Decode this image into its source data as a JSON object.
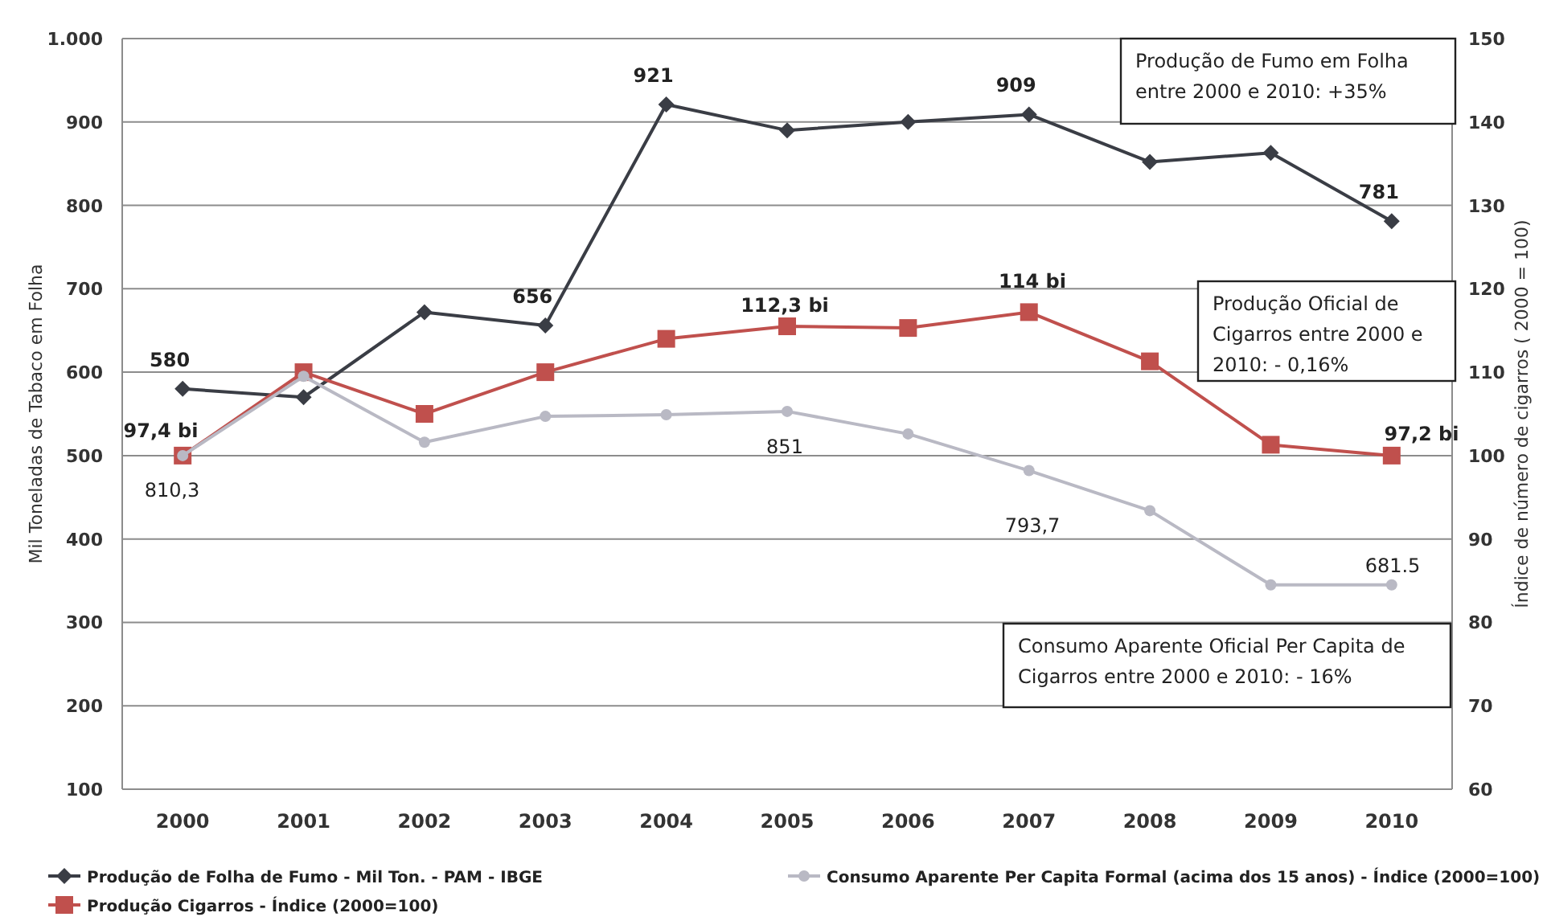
{
  "chart_data": {
    "type": "line",
    "ylabel": "Mil Toneladas de Tabaco em Folha",
    "y2label": "Índice de número de cigarros ( 2000 = 100)",
    "categories": [
      "2000",
      "2001",
      "2002",
      "2003",
      "2004",
      "2005",
      "2006",
      "2007",
      "2008",
      "2009",
      "2010"
    ],
    "ylim": [
      100,
      1000
    ],
    "yticks": [
      100,
      200,
      300,
      400,
      500,
      600,
      700,
      800,
      900,
      {
        "value": 1000,
        "label": "1.000"
      }
    ],
    "y2lim": [
      60,
      150
    ],
    "y2ticks": [
      60,
      70,
      80,
      90,
      100,
      110,
      120,
      130,
      140,
      150
    ],
    "grid": "y",
    "legend": "bottom",
    "series": [
      {
        "name": "Produção de Folha de Fumo - Mil Ton. - PAM - IBGE",
        "color": "#3a3d45",
        "marker": "diamond",
        "values": [
          580,
          570,
          672,
          656,
          921,
          890,
          900,
          909,
          852,
          863,
          781
        ],
        "value_labels": [
          "580",
          null,
          null,
          "656",
          "921",
          null,
          null,
          "909",
          null,
          null,
          "781"
        ]
      },
      {
        "name": "Produção Cigarros  - Índice (2000=100)",
        "color": "#c0504d",
        "marker": "square",
        "axis": "y2",
        "values": [
          100,
          110,
          105,
          110,
          114,
          115.5,
          115.3,
          117.2,
          111.3,
          101.3,
          100
        ]
      },
      {
        "name": "Consumo Aparente Per Capita Formal (acima dos 15 anos) - Índice (2000=100)",
        "color": "#b9b9c4",
        "marker": "circle",
        "axis": "y2",
        "values": [
          100,
          109.5,
          101.6,
          104.7,
          104.9,
          105.3,
          102.6,
          98.2,
          93.4,
          84.5,
          84.5
        ]
      }
    ],
    "annotations": [
      "Produção  de Fumo em  Folha\nentre 2000 e 2010: +35%",
      "Produção Oficial de\nCigarros entre 2000 e\n2010: - 0,16%",
      "Consumo Aparente Oficial  Per Capita de\nCigarros entre 2000 e 2010:  - 16%",
      "97,4 bi",
      "112,3 bi",
      "114 bi",
      "97,2 bi",
      "810,3",
      "851",
      "793,7",
      "681.5"
    ]
  }
}
